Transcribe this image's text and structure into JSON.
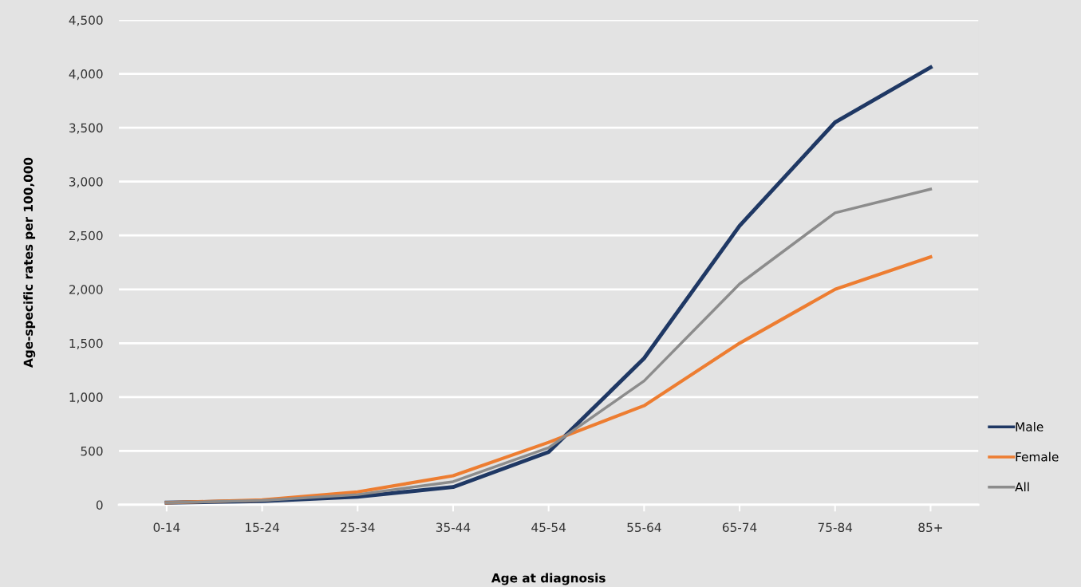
{
  "chart_data": {
    "type": "line",
    "xlabel": "Age at diagnosis",
    "ylabel": "Age-specific rates per 100,000",
    "categories": [
      "0-14",
      "15-24",
      "25-34",
      "35-44",
      "45-54",
      "55-64",
      "65-74",
      "75-84",
      "85+"
    ],
    "series": [
      {
        "name": "Male",
        "color": "#1f3864",
        "values": [
          20,
          35,
          75,
          165,
          490,
          1360,
          2590,
          3550,
          4060
        ]
      },
      {
        "name": "Female",
        "color": "#ed7d31",
        "values": [
          20,
          45,
          120,
          270,
          580,
          920,
          1500,
          2000,
          2300
        ]
      },
      {
        "name": "All",
        "color": "#8c8c8c",
        "values": [
          20,
          40,
          95,
          215,
          530,
          1150,
          2050,
          2710,
          2930
        ]
      }
    ],
    "ylim": [
      0,
      4500
    ],
    "yticks": [
      {
        "value": 0,
        "label": "0"
      },
      {
        "value": 500,
        "label": "500"
      },
      {
        "value": 1000,
        "label": "1,000"
      },
      {
        "value": 1500,
        "label": "1,500"
      },
      {
        "value": 2000,
        "label": "2,000"
      },
      {
        "value": 2500,
        "label": "2,500"
      },
      {
        "value": 3000,
        "label": "3,000"
      },
      {
        "value": 3500,
        "label": "3,500"
      },
      {
        "value": 4000,
        "label": "4,000"
      },
      {
        "value": 4500,
        "label": "4,500"
      }
    ],
    "grid": "y",
    "legend": "bottom right",
    "marker": "none",
    "line_style": "solid"
  }
}
